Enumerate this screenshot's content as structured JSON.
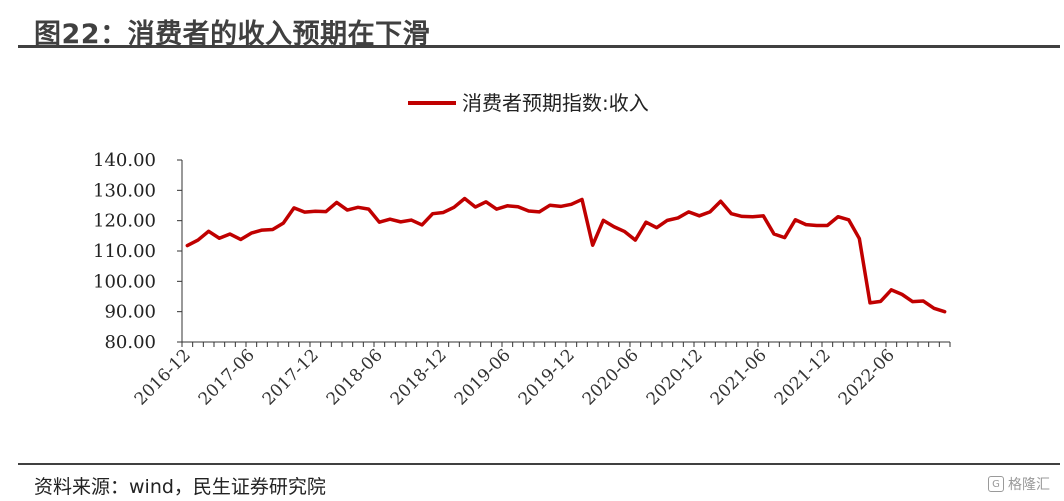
{
  "header": {
    "title": "图22：消费者的收入预期在下滑"
  },
  "footer": {
    "source": "资料来源：wind，民生证券研究院",
    "watermark": "格隆汇"
  },
  "colors": {
    "series": "#c00000",
    "rule": "#404040"
  },
  "chart_data": {
    "type": "line",
    "title": "",
    "xlabel": "",
    "ylabel": "",
    "ylim": [
      80,
      140
    ],
    "yticks": [
      "140.00",
      "130.00",
      "120.00",
      "110.00",
      "100.00",
      "90.00",
      "80.00"
    ],
    "xtick_labels": [
      "2016-12",
      "2017-06",
      "2017-12",
      "2018-06",
      "2018-12",
      "2019-06",
      "2019-12",
      "2020-06",
      "2020-12",
      "2021-06",
      "2021-12",
      "2022-06"
    ],
    "legend": "top-center",
    "grid": false,
    "x_start": "2016-12",
    "x_step": "1 month",
    "series": [
      {
        "name": "消费者预期指数:收入",
        "values": [
          111.8,
          113.6,
          116.5,
          114.2,
          115.6,
          113.8,
          115.9,
          116.9,
          117.1,
          119.2,
          124.2,
          122.8,
          123.1,
          123.0,
          126.0,
          123.5,
          124.4,
          123.8,
          119.5,
          120.5,
          119.6,
          120.2,
          118.6,
          122.3,
          122.7,
          124.4,
          127.3,
          124.5,
          126.2,
          123.8,
          124.9,
          124.6,
          123.2,
          122.9,
          125.1,
          124.7,
          125.4,
          127.0,
          111.9,
          120.1,
          118.0,
          116.4,
          113.6,
          119.5,
          117.7,
          120.1,
          120.9,
          122.9,
          121.6,
          122.9,
          126.4,
          122.3,
          121.4,
          121.3,
          121.6,
          115.6,
          114.4,
          120.3,
          118.7,
          118.4,
          118.4,
          121.3,
          120.3,
          114.1,
          92.9,
          93.4,
          97.2,
          95.7,
          93.3,
          93.5,
          91.1,
          90.0
        ]
      }
    ]
  }
}
